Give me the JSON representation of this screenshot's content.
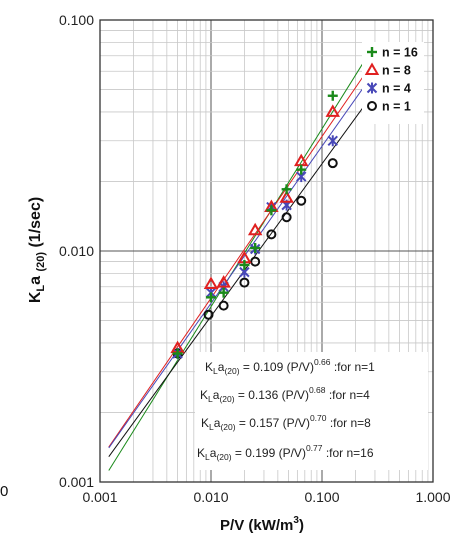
{
  "chart_data": {
    "type": "scatter",
    "xlabel_main": "P/V (kW/m",
    "xlabel_sup": "3",
    "xlabel_end": ")",
    "ylabel_main": "K",
    "ylabel_sub1": "L",
    "ylabel_mid": "a ",
    "ylabel_sub2": "(20)",
    "ylabel_end": " (1/sec)",
    "x_scale": "log",
    "y_scale": "log",
    "xlim": [
      0.001,
      1.0
    ],
    "ylim": [
      0.001,
      0.1
    ],
    "x_ticks": [
      "0.001",
      "0.010",
      "0.100",
      "1.000"
    ],
    "y_ticks": [
      "0.001",
      "0.010",
      "0.100"
    ],
    "grid": true,
    "legend_position": "top-right",
    "stray_label": "0",
    "series": [
      {
        "name": "n = 16",
        "color": "#1a8a1a",
        "marker": "plus",
        "x": [
          0.005,
          0.01,
          0.013,
          0.02,
          0.025,
          0.035,
          0.048,
          0.065,
          0.125
        ],
        "y": [
          0.0036,
          0.0063,
          0.0066,
          0.0087,
          0.0103,
          0.015,
          0.0185,
          0.0225,
          0.047
        ],
        "fit": {
          "coef": 0.199,
          "exp": 0.77
        }
      },
      {
        "name": "n = 8",
        "color": "#e02020",
        "marker": "triangle",
        "x": [
          0.005,
          0.01,
          0.013,
          0.02,
          0.025,
          0.035,
          0.048,
          0.065,
          0.125
        ],
        "y": [
          0.0038,
          0.0072,
          0.0073,
          0.0093,
          0.0123,
          0.0155,
          0.017,
          0.0245,
          0.04
        ],
        "fit": {
          "coef": 0.157,
          "exp": 0.7
        }
      },
      {
        "name": "n = 4",
        "color": "#4848b8",
        "marker": "star",
        "x": [
          0.005,
          0.01,
          0.013,
          0.02,
          0.025,
          0.035,
          0.048,
          0.065,
          0.125
        ],
        "y": [
          0.0036,
          0.0066,
          0.007,
          0.0081,
          0.0102,
          0.0155,
          0.0158,
          0.021,
          0.03
        ],
        "fit": {
          "coef": 0.136,
          "exp": 0.68
        }
      },
      {
        "name": "n = 1",
        "color": "#111111",
        "marker": "circle",
        "x": [
          0.005,
          0.0095,
          0.013,
          0.02,
          0.025,
          0.035,
          0.048,
          0.065,
          0.125
        ],
        "y": [
          0.0036,
          0.0053,
          0.0058,
          0.0073,
          0.009,
          0.0118,
          0.014,
          0.0165,
          0.024
        ],
        "fit": {
          "coef": 0.109,
          "exp": 0.66
        }
      }
    ],
    "equations": [
      {
        "a": "K",
        "b": "L",
        "c": "a",
        "d": "(20)",
        "e": " = 0.109 (P/V)",
        "exp": "0.66",
        "note": " :for n=1"
      },
      {
        "a": "K",
        "b": "L",
        "c": "a",
        "d": "(20)",
        "e": " = 0.136 (P/V)",
        "exp": "0.68",
        "note": " :for n=4"
      },
      {
        "a": "K",
        "b": "L",
        "c": "a",
        "d": "(20)",
        "e": " = 0.157 (P/V)",
        "exp": "0.70",
        "note": "  :for n=8"
      },
      {
        "a": "K",
        "b": "L",
        "c": "a",
        "d": "(20)",
        "e": " = 0.199 (P/V)",
        "exp": "0.77",
        "note": "  :for n=16"
      }
    ]
  }
}
